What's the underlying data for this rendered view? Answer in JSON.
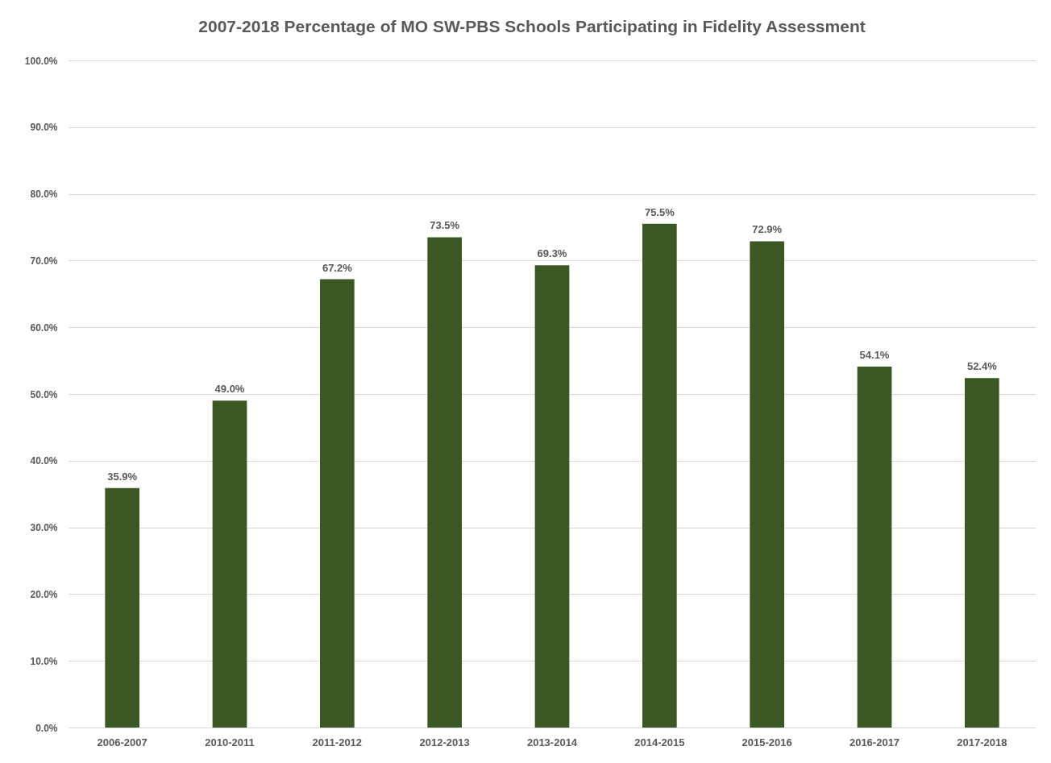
{
  "chart_data": {
    "type": "bar",
    "title": "2007-2018 Percentage of  MO SW-PBS Schools  Participating in  Fidelity  Assessment",
    "categories": [
      "2006-2007",
      "2010-2011",
      "2011-2012",
      "2012-2013",
      "2013-2014",
      "2014-2015",
      "2015-2016",
      "2016-2017",
      "2017-2018"
    ],
    "values": [
      35.9,
      49.0,
      67.2,
      73.5,
      69.3,
      75.5,
      72.9,
      54.1,
      52.4
    ],
    "value_labels": [
      "35.9%",
      "49.0%",
      "67.2%",
      "73.5%",
      "69.3%",
      "75.5%",
      "72.9%",
      "54.1%",
      "52.4%"
    ],
    "color": "#3b5724",
    "ylim": [
      0,
      100
    ],
    "yticks": [
      {
        "value": 0,
        "label": "0.0%"
      },
      {
        "value": 10,
        "label": "10.0%"
      },
      {
        "value": 20,
        "label": "20.0%"
      },
      {
        "value": 30,
        "label": "30.0%"
      },
      {
        "value": 40,
        "label": "40.0%"
      },
      {
        "value": 50,
        "label": "50.0%"
      },
      {
        "value": 60,
        "label": "60.0%"
      },
      {
        "value": 70,
        "label": "70.0%"
      },
      {
        "value": 80,
        "label": "80.0%"
      },
      {
        "value": 90,
        "label": "90.0%"
      },
      {
        "value": 100,
        "label": "100.0%"
      }
    ],
    "grid": "y"
  }
}
